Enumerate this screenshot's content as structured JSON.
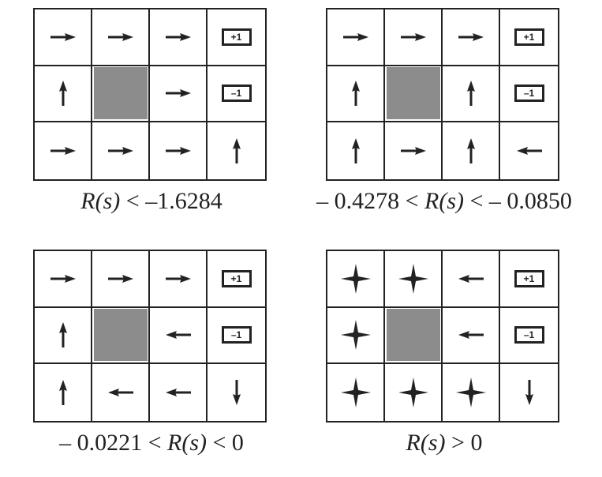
{
  "panels": [
    {
      "caption_pre": "",
      "caption_var": "R(s)",
      "caption_post": " < –1.6284",
      "grid": [
        [
          "right",
          "right",
          "right",
          "+1"
        ],
        [
          "up",
          "wall",
          "right",
          "–1"
        ],
        [
          "right",
          "right",
          "right",
          "up"
        ]
      ]
    },
    {
      "caption_pre": "– 0.4278 < ",
      "caption_var": "R(s)",
      "caption_post": " < – 0.0850",
      "grid": [
        [
          "right",
          "right",
          "right",
          "+1"
        ],
        [
          "up",
          "wall",
          "up",
          "–1"
        ],
        [
          "up",
          "right",
          "up",
          "left"
        ]
      ]
    },
    {
      "caption_pre": "– 0.0221 < ",
      "caption_var": "R(s)",
      "caption_post": " < 0",
      "grid": [
        [
          "right",
          "right",
          "right",
          "+1"
        ],
        [
          "up",
          "wall",
          "left",
          "–1"
        ],
        [
          "up",
          "left",
          "left",
          "down"
        ]
      ]
    },
    {
      "caption_pre": "",
      "caption_var": "R(s)",
      "caption_post": " > 0",
      "grid": [
        [
          "any",
          "any",
          "left",
          "+1"
        ],
        [
          "any",
          "wall",
          "left",
          "–1"
        ],
        [
          "any",
          "any",
          "any",
          "down"
        ]
      ]
    }
  ]
}
